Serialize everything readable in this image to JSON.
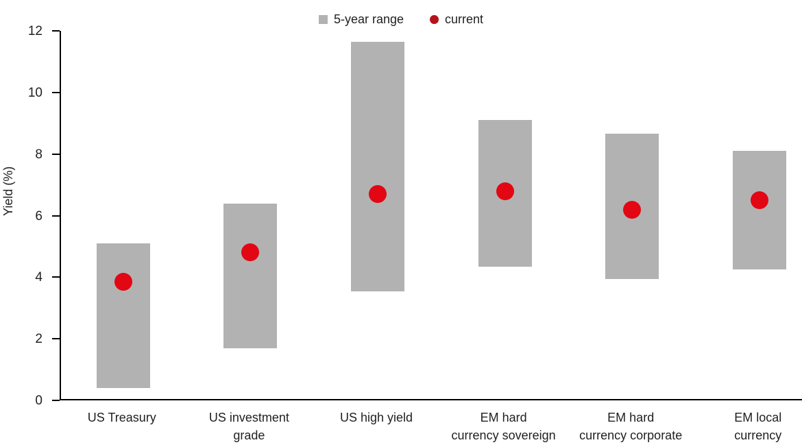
{
  "chart_data": {
    "type": "bar",
    "subtype": "floating-range-bars-with-current-dot",
    "title": "",
    "ylabel": "Yield (%)",
    "ylim": [
      0,
      12
    ],
    "yticks": [
      0,
      2,
      4,
      6,
      8,
      10,
      12
    ],
    "grid": false,
    "legend_position": "top-center",
    "legend": [
      {
        "label": "5-year range",
        "marker": "square",
        "color": "#b2b2b2"
      },
      {
        "label": "current",
        "marker": "dot",
        "color": "#b5121b"
      }
    ],
    "categories": [
      "US Treasury",
      "US investment grade",
      "US high yield",
      "EM hard currency sovereign",
      "EM hard currency corporate",
      "EM local currency"
    ],
    "category_label_lines": [
      [
        "US Treasury"
      ],
      [
        "US investment",
        "grade"
      ],
      [
        "US high yield"
      ],
      [
        "EM hard",
        "currency sovereign"
      ],
      [
        "EM hard",
        "currency corporate"
      ],
      [
        "EM local",
        "currency"
      ]
    ],
    "series": [
      {
        "name": "5-year range",
        "type": "range",
        "low": [
          0.4,
          1.7,
          3.55,
          4.35,
          3.95,
          4.25
        ],
        "high": [
          5.1,
          6.4,
          11.65,
          9.1,
          8.65,
          8.1
        ]
      },
      {
        "name": "current",
        "type": "dot",
        "values": [
          3.85,
          4.8,
          6.7,
          6.8,
          6.2,
          6.5
        ]
      }
    ],
    "colors": {
      "range_fill": "#b2b2b2",
      "current_fill": "#e30613",
      "legend_current_fill": "#b5121b",
      "axis": "#000000",
      "text": "#1f1f1f"
    }
  }
}
